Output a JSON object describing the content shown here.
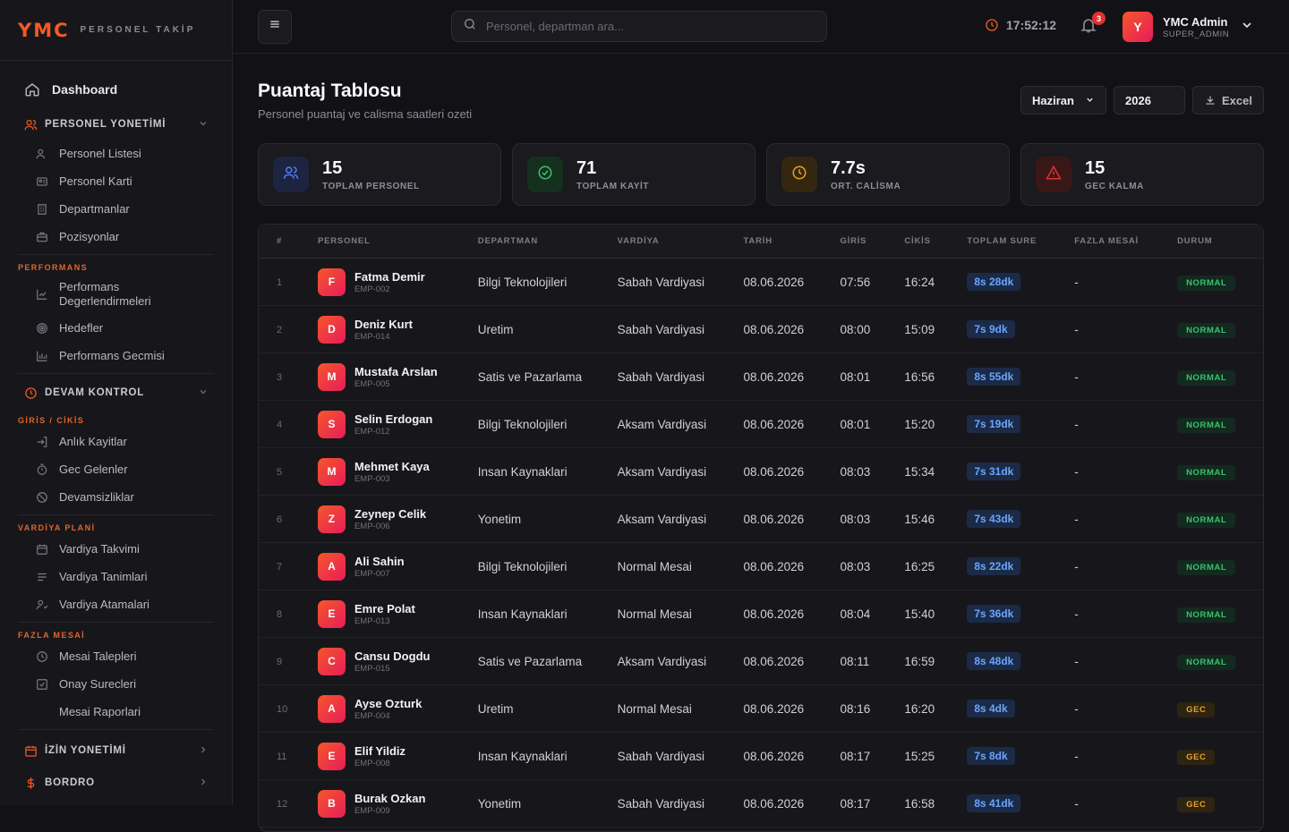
{
  "brand": {
    "name": "YMC",
    "subtitle": "PERSONEL TAKİP"
  },
  "sidebar": {
    "dashboard": "Dashboard",
    "personel_group": "PERSONEL YONETİMİ",
    "personel_items": [
      "Personel Listesi",
      "Personel Karti",
      "Departmanlar",
      "Pozisyonlar"
    ],
    "performans_label": "PERFORMANS",
    "performans_items": [
      "Performans Degerlendirmeleri",
      "Hedefler",
      "Performans Gecmisi"
    ],
    "devam_group": "DEVAM KONTROL",
    "giris_label": "GİRİS / CİKİS",
    "giris_items": [
      "Anlık Kayitlar",
      "Gec Gelenler",
      "Devamsizliklar"
    ],
    "vardiya_label": "VARDİYA PLANİ",
    "vardiya_items": [
      "Vardiya Takvimi",
      "Vardiya Tanimlari",
      "Vardiya Atamalari"
    ],
    "fazla_label": "FAZLA MESAİ",
    "fazla_items": [
      "Mesai Talepleri",
      "Onay Surecleri",
      "Mesai Raporlari"
    ],
    "izin_group": "İZİN YONETİMİ",
    "bordro_group": "BORDRO"
  },
  "topbar": {
    "search_placeholder": "Personel, departman ara...",
    "time": "17:52:12",
    "notif_count": "3",
    "user_initial": "Y",
    "user_name": "YMC Admin",
    "user_role": "SUPER_ADMIN"
  },
  "page": {
    "title": "Puantaj Tablosu",
    "subtitle": "Personel puantaj ve calisma saatleri ozeti",
    "month": "Haziran",
    "year": "2026",
    "excel_label": "Excel"
  },
  "stats": [
    {
      "value": "15",
      "label": "TOPLAM PERSONEL",
      "color": "#4f7dff",
      "bg": "#1d2440"
    },
    {
      "value": "71",
      "label": "TOPLAM KAYİT",
      "color": "#36c46e",
      "bg": "#16301f"
    },
    {
      "value": "7.7s",
      "label": "ORT. CALİSMA",
      "color": "#e7a225",
      "bg": "#33270f"
    },
    {
      "value": "15",
      "label": "GEC KALMA",
      "color": "#e0302f",
      "bg": "#3a1717"
    }
  ],
  "table": {
    "headers": [
      "#",
      "PERSONEL",
      "DEPARTMAN",
      "VARDİYA",
      "TARİH",
      "GİRİS",
      "CİKİS",
      "TOPLAM SURE",
      "FAZLA MESAİ",
      "DURUM"
    ],
    "rows": [
      {
        "idx": "1",
        "initial": "F",
        "name": "Fatma Demir",
        "code": "EMP-002",
        "dept": "Bilgi Teknolojileri",
        "shift": "Sabah Vardiyasi",
        "date": "08.06.2026",
        "in": "07:56",
        "out": "16:24",
        "total": "8s 28dk",
        "overtime": "-",
        "status": "NORMAL",
        "status_type": "normal"
      },
      {
        "idx": "2",
        "initial": "D",
        "name": "Deniz Kurt",
        "code": "EMP-014",
        "dept": "Uretim",
        "shift": "Sabah Vardiyasi",
        "date": "08.06.2026",
        "in": "08:00",
        "out": "15:09",
        "total": "7s 9dk",
        "overtime": "-",
        "status": "NORMAL",
        "status_type": "normal"
      },
      {
        "idx": "3",
        "initial": "M",
        "name": "Mustafa Arslan",
        "code": "EMP-005",
        "dept": "Satis ve Pazarlama",
        "shift": "Sabah Vardiyasi",
        "date": "08.06.2026",
        "in": "08:01",
        "out": "16:56",
        "total": "8s 55dk",
        "overtime": "-",
        "status": "NORMAL",
        "status_type": "normal"
      },
      {
        "idx": "4",
        "initial": "S",
        "name": "Selin Erdogan",
        "code": "EMP-012",
        "dept": "Bilgi Teknolojileri",
        "shift": "Aksam Vardiyasi",
        "date": "08.06.2026",
        "in": "08:01",
        "out": "15:20",
        "total": "7s 19dk",
        "overtime": "-",
        "status": "NORMAL",
        "status_type": "normal"
      },
      {
        "idx": "5",
        "initial": "M",
        "name": "Mehmet Kaya",
        "code": "EMP-003",
        "dept": "Insan Kaynaklari",
        "shift": "Aksam Vardiyasi",
        "date": "08.06.2026",
        "in": "08:03",
        "out": "15:34",
        "total": "7s 31dk",
        "overtime": "-",
        "status": "NORMAL",
        "status_type": "normal"
      },
      {
        "idx": "6",
        "initial": "Z",
        "name": "Zeynep Celik",
        "code": "EMP-006",
        "dept": "Yonetim",
        "shift": "Aksam Vardiyasi",
        "date": "08.06.2026",
        "in": "08:03",
        "out": "15:46",
        "total": "7s 43dk",
        "overtime": "-",
        "status": "NORMAL",
        "status_type": "normal"
      },
      {
        "idx": "7",
        "initial": "A",
        "name": "Ali Sahin",
        "code": "EMP-007",
        "dept": "Bilgi Teknolojileri",
        "shift": "Normal Mesai",
        "date": "08.06.2026",
        "in": "08:03",
        "out": "16:25",
        "total": "8s 22dk",
        "overtime": "-",
        "status": "NORMAL",
        "status_type": "normal"
      },
      {
        "idx": "8",
        "initial": "E",
        "name": "Emre Polat",
        "code": "EMP-013",
        "dept": "Insan Kaynaklari",
        "shift": "Normal Mesai",
        "date": "08.06.2026",
        "in": "08:04",
        "out": "15:40",
        "total": "7s 36dk",
        "overtime": "-",
        "status": "NORMAL",
        "status_type": "normal"
      },
      {
        "idx": "9",
        "initial": "C",
        "name": "Cansu Dogdu",
        "code": "EMP-015",
        "dept": "Satis ve Pazarlama",
        "shift": "Aksam Vardiyasi",
        "date": "08.06.2026",
        "in": "08:11",
        "out": "16:59",
        "total": "8s 48dk",
        "overtime": "-",
        "status": "NORMAL",
        "status_type": "normal"
      },
      {
        "idx": "10",
        "initial": "A",
        "name": "Ayse Ozturk",
        "code": "EMP-004",
        "dept": "Uretim",
        "shift": "Normal Mesai",
        "date": "08.06.2026",
        "in": "08:16",
        "out": "16:20",
        "total": "8s 4dk",
        "overtime": "-",
        "status": "GEC",
        "status_type": "gec"
      },
      {
        "idx": "11",
        "initial": "E",
        "name": "Elif Yildiz",
        "code": "EMP-008",
        "dept": "Insan Kaynaklari",
        "shift": "Sabah Vardiyasi",
        "date": "08.06.2026",
        "in": "08:17",
        "out": "15:25",
        "total": "7s 8dk",
        "overtime": "-",
        "status": "GEC",
        "status_type": "gec"
      },
      {
        "idx": "12",
        "initial": "B",
        "name": "Burak Ozkan",
        "code": "EMP-009",
        "dept": "Yonetim",
        "shift": "Sabah Vardiyasi",
        "date": "08.06.2026",
        "in": "08:17",
        "out": "16:58",
        "total": "8s 41dk",
        "overtime": "-",
        "status": "GEC",
        "status_type": "gec"
      }
    ]
  }
}
